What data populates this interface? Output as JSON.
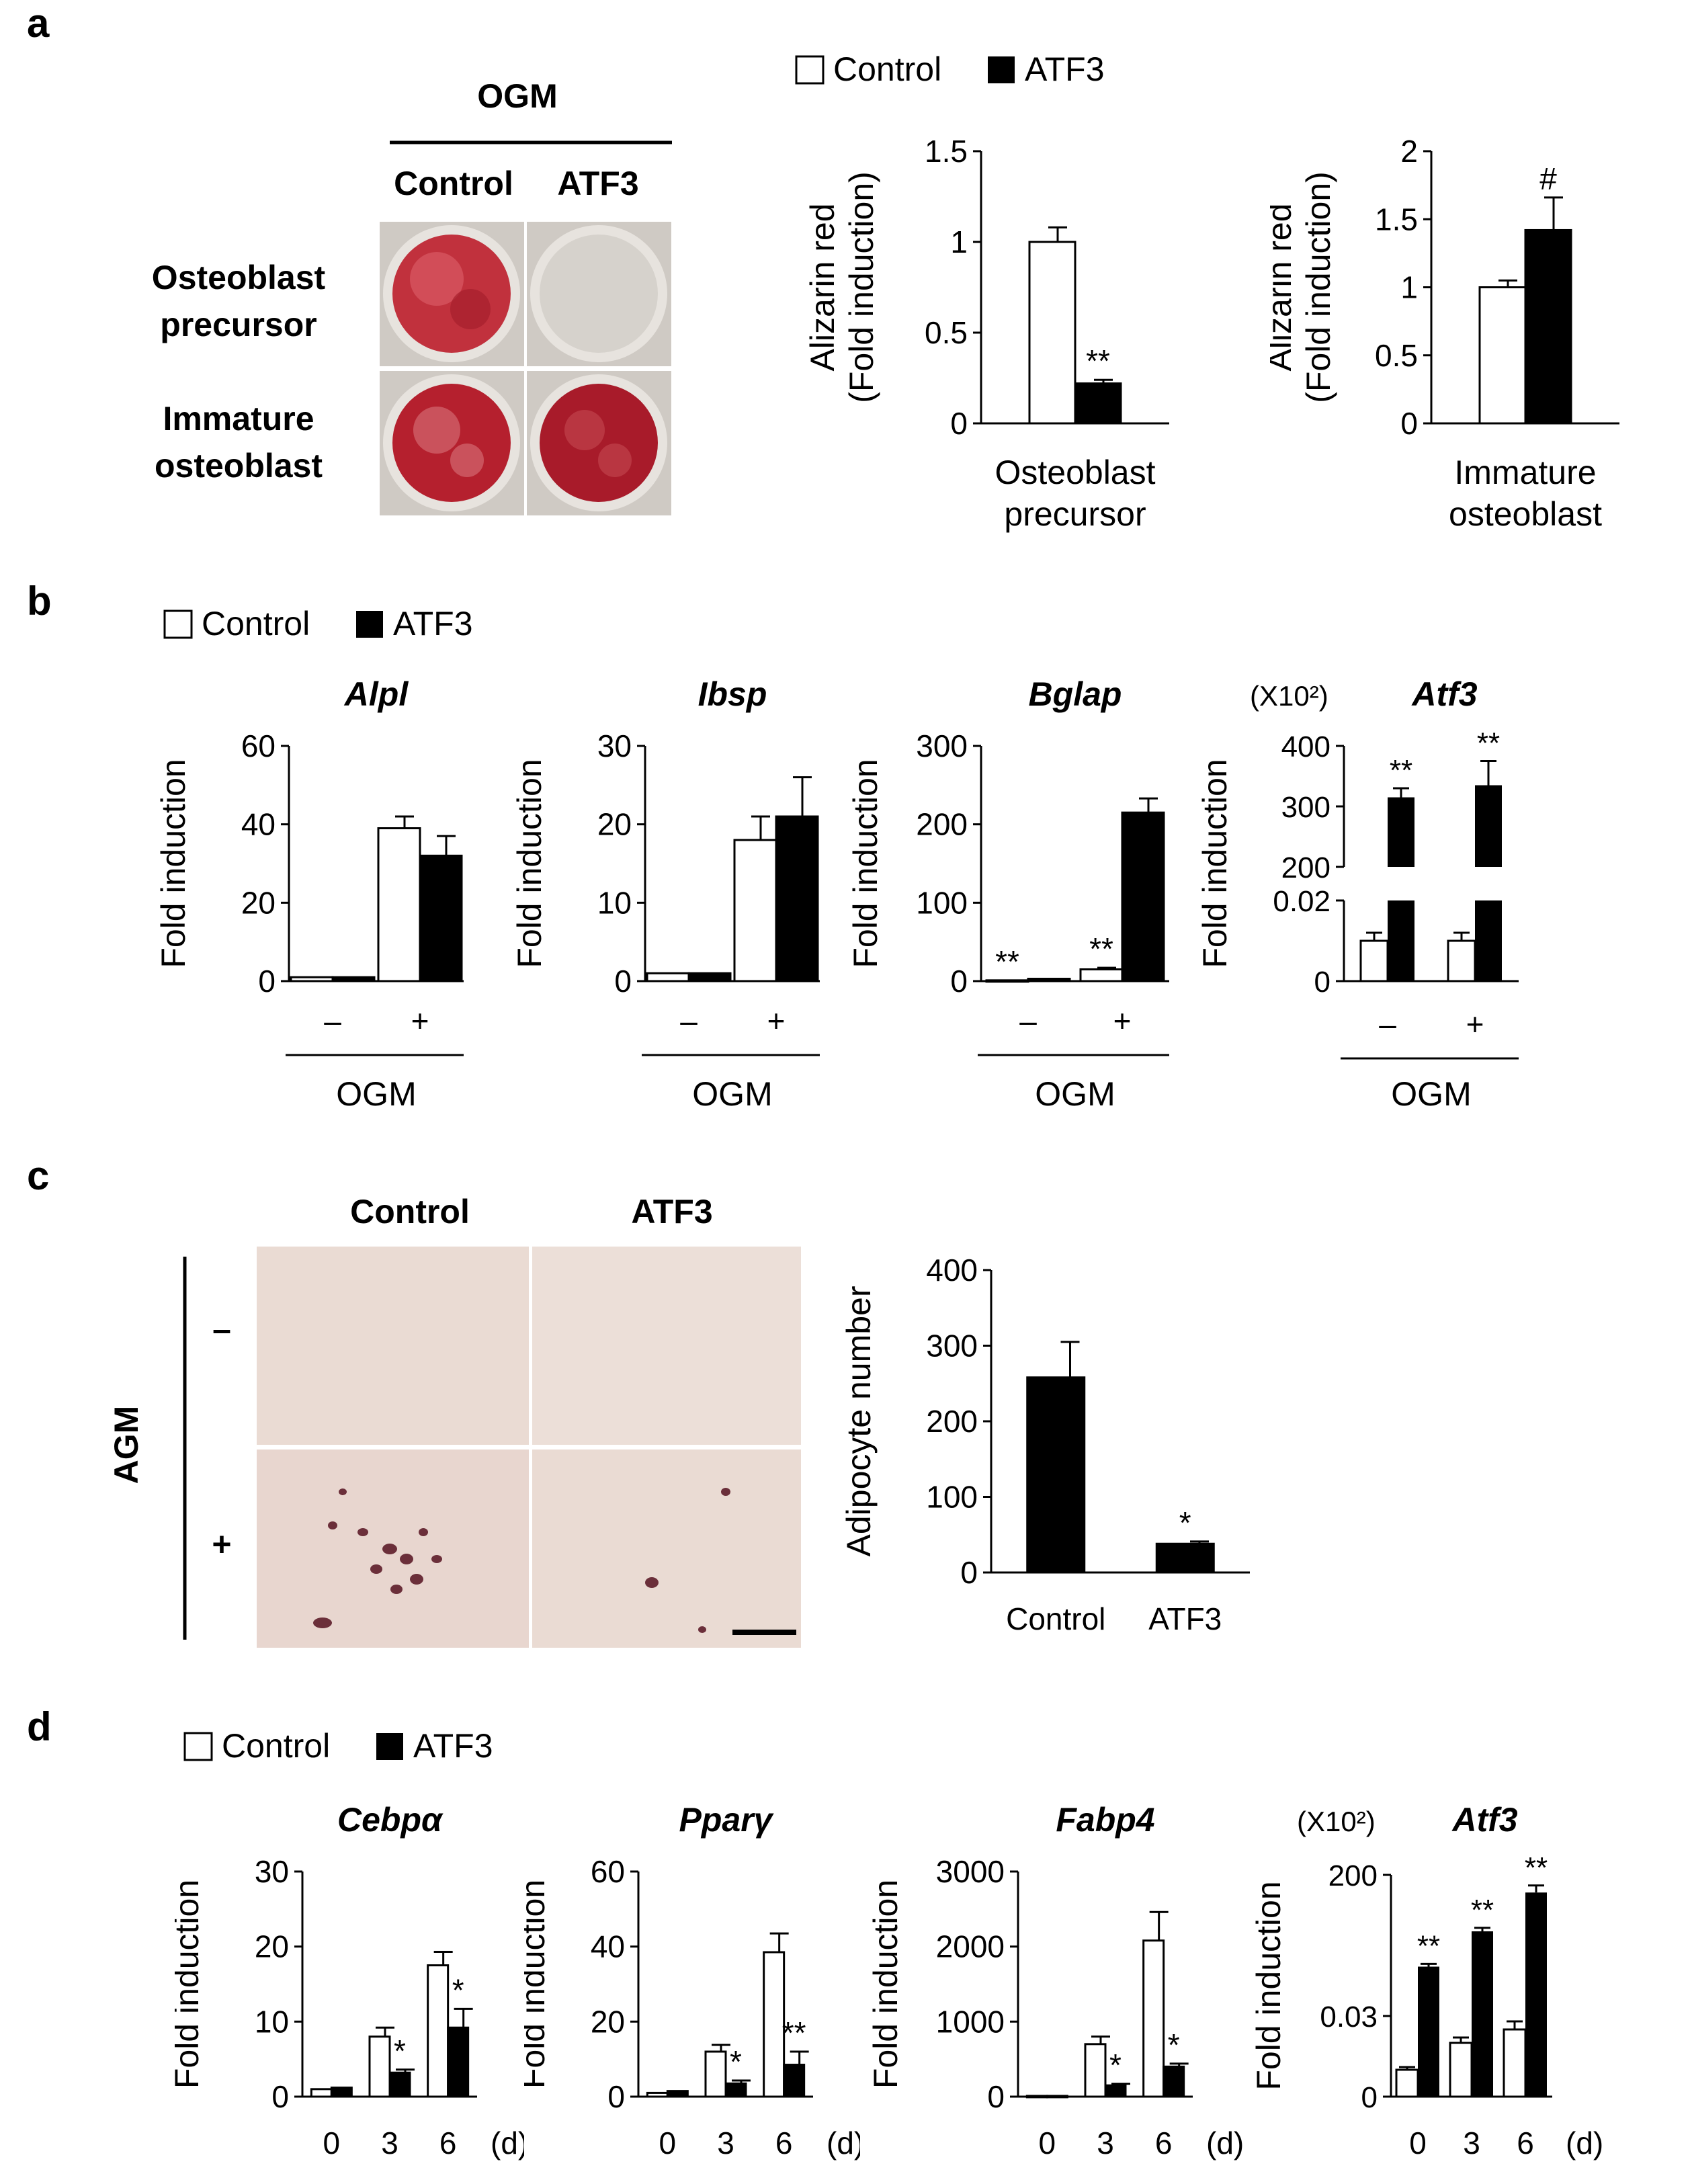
{
  "panels": {
    "a": "a",
    "b": "b",
    "c": "c",
    "d": "d"
  },
  "legend": {
    "control": "Control",
    "atf3": "ATF3"
  },
  "colors": {
    "control_fill": "#ffffff",
    "atf3_fill": "#000000",
    "stain_red": "#b5202e",
    "plate_bg": "#d8d4cf",
    "micrograph_bg": "#eadbd3",
    "cell_dark": "#6b2f3a"
  },
  "panel_a": {
    "header": "OGM",
    "col_labels": [
      "Control",
      "ATF3"
    ],
    "row_labels": [
      [
        "Osteoblast",
        "precursor"
      ],
      [
        "Immature",
        "osteoblast"
      ]
    ],
    "photo_note": "alizarin red stained culture wells"
  },
  "panel_c": {
    "col_labels": [
      "Control",
      "ATF3"
    ],
    "side_label": "AGM",
    "row_signs": [
      "–",
      "+"
    ],
    "photo_note": "oil red O stained micrographs with scale bar"
  },
  "chart_data": [
    {
      "id": "a1",
      "panel": "a",
      "type": "bar",
      "ylabel": [
        "Alizarin red",
        "(Fold induction)"
      ],
      "ylim": [
        0,
        1.5
      ],
      "yticks": [
        0,
        0.5,
        1,
        1.5
      ],
      "yticklabels": [
        "0",
        "0.5",
        "1",
        "1.5"
      ],
      "category_label": [
        "Osteoblast",
        "precursor"
      ],
      "series": [
        {
          "name": "Control",
          "values": [
            1.0
          ],
          "errors": [
            0.08
          ]
        },
        {
          "name": "ATF3",
          "values": [
            0.22
          ],
          "errors": [
            0.02
          ]
        }
      ],
      "annotations": [
        "",
        "**"
      ]
    },
    {
      "id": "a2",
      "panel": "a",
      "type": "bar",
      "ylabel": [
        "Alizarin red",
        "(Fold induction)"
      ],
      "ylim": [
        0,
        2
      ],
      "yticks": [
        0,
        0.5,
        1,
        1.5,
        2
      ],
      "yticklabels": [
        "0",
        "0.5",
        "1",
        "1.5",
        "2"
      ],
      "category_label": [
        "Immature",
        "osteoblast"
      ],
      "series": [
        {
          "name": "Control",
          "values": [
            1.0
          ],
          "errors": [
            0.05
          ]
        },
        {
          "name": "ATF3",
          "values": [
            1.42
          ],
          "errors": [
            0.24
          ]
        }
      ],
      "annotations": [
        "",
        "#"
      ]
    },
    {
      "id": "b_alpl",
      "panel": "b",
      "type": "bar",
      "title": "Alpl",
      "ylabel": "Fold induction",
      "ylim": [
        0,
        60
      ],
      "yticks": [
        0,
        20,
        40,
        60
      ],
      "yticklabels": [
        "0",
        "20",
        "40",
        "60"
      ],
      "categories": [
        "–",
        "+"
      ],
      "group_label": "OGM",
      "series": [
        {
          "name": "Control",
          "values": [
            1,
            39
          ],
          "errors": [
            0,
            3
          ]
        },
        {
          "name": "ATF3",
          "values": [
            1,
            32
          ],
          "errors": [
            0,
            5
          ]
        }
      ],
      "annotations": [
        [
          "",
          ""
        ],
        [
          "",
          ""
        ]
      ]
    },
    {
      "id": "b_ibsp",
      "panel": "b",
      "type": "bar",
      "title": "Ibsp",
      "ylabel": "Fold induction",
      "ylim": [
        0,
        30
      ],
      "yticks": [
        0,
        10,
        20,
        30
      ],
      "yticklabels": [
        "0",
        "10",
        "20",
        "30"
      ],
      "categories": [
        "–",
        "+"
      ],
      "group_label": "OGM",
      "series": [
        {
          "name": "Control",
          "values": [
            1,
            18
          ],
          "errors": [
            0,
            3
          ]
        },
        {
          "name": "ATF3",
          "values": [
            1,
            21
          ],
          "errors": [
            0,
            5
          ]
        }
      ],
      "annotations": [
        [
          "",
          ""
        ],
        [
          "",
          ""
        ]
      ]
    },
    {
      "id": "b_bglap",
      "panel": "b",
      "type": "bar",
      "title": "Bglap",
      "ylabel": "Fold induction",
      "ylim": [
        0,
        300
      ],
      "yticks": [
        0,
        100,
        200,
        300
      ],
      "yticklabels": [
        "0",
        "100",
        "200",
        "300"
      ],
      "categories": [
        "–",
        "+"
      ],
      "group_label": "OGM",
      "series": [
        {
          "name": "Control",
          "values": [
            1,
            15
          ],
          "errors": [
            0,
            2
          ]
        },
        {
          "name": "ATF3",
          "values": [
            3,
            215
          ],
          "errors": [
            0,
            18
          ]
        }
      ],
      "annotations": [
        [
          "**",
          ""
        ],
        [
          "**",
          ""
        ]
      ]
    },
    {
      "id": "b_atf3",
      "panel": "b",
      "type": "bar",
      "title": "Atf3",
      "scale_note": "(X10²)",
      "ylabel": "Fold induction",
      "broken_axis": true,
      "lower_ylim": [
        0,
        0.02
      ],
      "lower_yticklabels": [
        "0",
        "0.02"
      ],
      "upper_ylim": [
        200,
        400
      ],
      "upper_yticklabels": [
        "200",
        "300",
        "400"
      ],
      "categories": [
        "–",
        "+"
      ],
      "group_label": "OGM",
      "series": [
        {
          "name": "Control",
          "values": [
            0.01,
            0.01
          ],
          "errors": [
            0.002,
            0.002
          ]
        },
        {
          "name": "ATF3",
          "values": [
            315,
            335
          ],
          "errors": [
            15,
            40
          ]
        }
      ],
      "annotations": [
        [
          "**",
          "**"
        ]
      ]
    },
    {
      "id": "c1",
      "panel": "c",
      "type": "bar",
      "ylabel": "Adipocyte number",
      "ylim": [
        0,
        400
      ],
      "yticks": [
        0,
        100,
        200,
        300,
        400
      ],
      "yticklabels": [
        "0",
        "100",
        "200",
        "300",
        "400"
      ],
      "categories": [
        "Control",
        "ATF3"
      ],
      "values": [
        258,
        38
      ],
      "errors": [
        47,
        3
      ],
      "annotations": [
        "",
        "*"
      ]
    },
    {
      "id": "d_cebpa",
      "panel": "d",
      "type": "bar",
      "title": "Cebpα",
      "ylabel": "Fold induction",
      "ylim": [
        0,
        30
      ],
      "yticks": [
        0,
        10,
        20,
        30
      ],
      "yticklabels": [
        "0",
        "10",
        "20",
        "30"
      ],
      "categories": [
        "0",
        "3",
        "6"
      ],
      "unit": "(d)",
      "series": [
        {
          "name": "Control",
          "values": [
            1,
            8,
            17.5
          ],
          "errors": [
            0,
            1.2,
            1.8
          ]
        },
        {
          "name": "ATF3",
          "values": [
            1.2,
            3.2,
            9.2
          ],
          "errors": [
            0,
            0.4,
            2.5
          ]
        }
      ],
      "annotations": [
        "",
        "*",
        "*"
      ]
    },
    {
      "id": "d_pparg",
      "panel": "d",
      "type": "bar",
      "title": "Pparγ",
      "ylabel": "Fold induction",
      "ylim": [
        0,
        60
      ],
      "yticks": [
        0,
        20,
        40,
        60
      ],
      "yticklabels": [
        "0",
        "20",
        "40",
        "60"
      ],
      "categories": [
        "0",
        "3",
        "6"
      ],
      "unit": "(d)",
      "series": [
        {
          "name": "Control",
          "values": [
            1,
            12,
            38.5
          ],
          "errors": [
            0,
            1.8,
            5
          ]
        },
        {
          "name": "ATF3",
          "values": [
            1.5,
            3.5,
            8.5
          ],
          "errors": [
            0,
            0.8,
            3.5
          ]
        }
      ],
      "annotations": [
        "",
        "*",
        "**"
      ]
    },
    {
      "id": "d_fabp4",
      "panel": "d",
      "type": "bar",
      "title": "Fabp4",
      "ylabel": "Fold induction",
      "ylim": [
        0,
        3000
      ],
      "yticks": [
        0,
        1000,
        2000,
        3000
      ],
      "yticklabels": [
        "0",
        "1000",
        "2000",
        "3000"
      ],
      "categories": [
        "0",
        "3",
        "6"
      ],
      "unit": "(d)",
      "series": [
        {
          "name": "Control",
          "values": [
            10,
            700,
            2080
          ],
          "errors": [
            0,
            100,
            380
          ]
        },
        {
          "name": "ATF3",
          "values": [
            10,
            150,
            400
          ],
          "errors": [
            0,
            20,
            40
          ]
        }
      ],
      "annotations": [
        "",
        "*",
        "*"
      ]
    },
    {
      "id": "d_atf3",
      "panel": "d",
      "type": "bar",
      "title": "Atf3",
      "scale_note": "(X10²)",
      "ylabel": "Fold induction",
      "broken_axis": true,
      "lower_ylim": [
        0,
        0.03
      ],
      "lower_yticklabels": [
        "0",
        "0.03"
      ],
      "upper_ylim": [
        0.03,
        200
      ],
      "upper_yticklabels": [
        "200"
      ],
      "categories": [
        "0",
        "3",
        "6"
      ],
      "unit": "(d)",
      "series": [
        {
          "name": "Control",
          "values": [
            0.01,
            0.02,
            0.025
          ],
          "errors": [
            0.001,
            0.002,
            0.003
          ]
        },
        {
          "name": "ATF3",
          "values": [
            70,
            120,
            175
          ],
          "errors": [
            4,
            5,
            10
          ]
        }
      ],
      "annotations": [
        "**",
        "**",
        "**"
      ]
    }
  ]
}
